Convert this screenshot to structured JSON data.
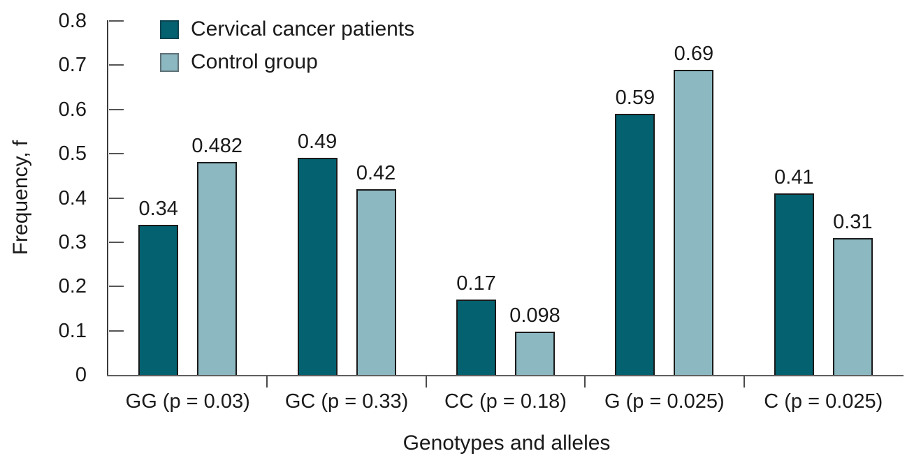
{
  "chart_data": {
    "type": "bar",
    "title": "",
    "xlabel": "Genotypes and alleles",
    "ylabel": "Frequency, f",
    "ylim": [
      0,
      0.8
    ],
    "ytick_labels": [
      "0.8",
      "0.7",
      "0.6",
      "0.5",
      "0.4",
      "0.3",
      "0.2",
      "0.1",
      "0"
    ],
    "categories": [
      "GG (p = 0.03)",
      "GC (p = 0.33)",
      "CC (p = 0.18)",
      "G (p = 0.025)",
      "C (p = 0.025)"
    ],
    "series": [
      {
        "name": "Cervical cancer patients",
        "color": "#04616F",
        "swatch_border": "#0D4450",
        "values": [
          0.34,
          0.49,
          0.17,
          0.59,
          0.41
        ],
        "value_labels": [
          "0.34",
          "0.49",
          "0.17",
          "0.59",
          "0.41"
        ]
      },
      {
        "name": "Control group",
        "color": "#8CB8C1",
        "swatch_border": "#5F7277",
        "values": [
          0.482,
          0.42,
          0.098,
          0.69,
          0.31
        ],
        "value_labels": [
          "0.482",
          "0.42",
          "0.098",
          "0.69",
          "0.31"
        ]
      }
    ],
    "legend_position": "top-left",
    "grid": false,
    "bar_border_color": "#1A1A1A",
    "axis_color": "#3C3C3C",
    "text_color": "#1A1A1A"
  }
}
